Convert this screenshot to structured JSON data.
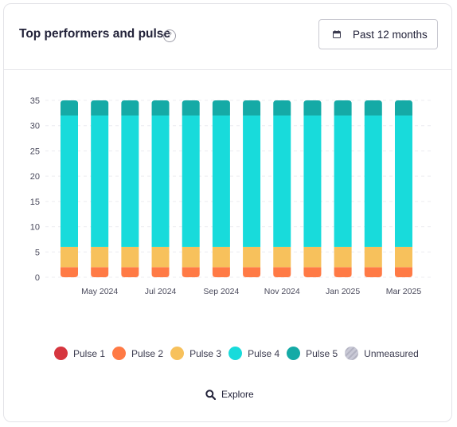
{
  "header": {
    "title": "Top performers and pulse",
    "help_icon": "question-circle-icon",
    "range_button_label": "Past 12 months",
    "range_icon": "calendar-icon"
  },
  "explore": {
    "label": "Explore",
    "icon": "search-icon"
  },
  "chart_data": {
    "type": "bar",
    "stacked": true,
    "categories": [
      "Apr 2024",
      "May 2024",
      "Jun 2024",
      "Jul 2024",
      "Aug 2024",
      "Sep 2024",
      "Oct 2024",
      "Nov 2024",
      "Dec 2024",
      "Jan 2025",
      "Feb 2025",
      "Mar 2025"
    ],
    "x_tick_labels": [
      "",
      "May 2024",
      "",
      "Jul 2024",
      "",
      "Sep 2024",
      "",
      "Nov 2024",
      "",
      "Jan 2025",
      "",
      "Mar 2025"
    ],
    "ylim": [
      0,
      35
    ],
    "y_ticks": [
      0,
      5,
      10,
      15,
      20,
      25,
      30,
      35
    ],
    "grid": true,
    "legend_placement": "bottom",
    "series": [
      {
        "name": "Pulse 1",
        "color": "#d6363f",
        "values": [
          0,
          0,
          0,
          0,
          0,
          0,
          0,
          0,
          0,
          0,
          0,
          0
        ]
      },
      {
        "name": "Pulse 2",
        "color": "#ff7a45",
        "values": [
          2,
          2,
          2,
          2,
          2,
          2,
          2,
          2,
          2,
          2,
          2,
          2
        ]
      },
      {
        "name": "Pulse 3",
        "color": "#f7c15c",
        "values": [
          4,
          4,
          4,
          4,
          4,
          4,
          4,
          4,
          4,
          4,
          4,
          4
        ]
      },
      {
        "name": "Pulse 4",
        "color": "#18dbdb",
        "values": [
          26,
          26,
          26,
          26,
          26,
          26,
          26,
          26,
          26,
          26,
          26,
          26
        ]
      },
      {
        "name": "Pulse 5",
        "color": "#15aaa6",
        "values": [
          3,
          3,
          3,
          3,
          3,
          3,
          3,
          3,
          3,
          3,
          3,
          3
        ]
      },
      {
        "name": "Unmeasured",
        "color": "#c9c9d6",
        "values": [
          0,
          0,
          0,
          0,
          0,
          0,
          0,
          0,
          0,
          0,
          0,
          0
        ]
      }
    ]
  }
}
